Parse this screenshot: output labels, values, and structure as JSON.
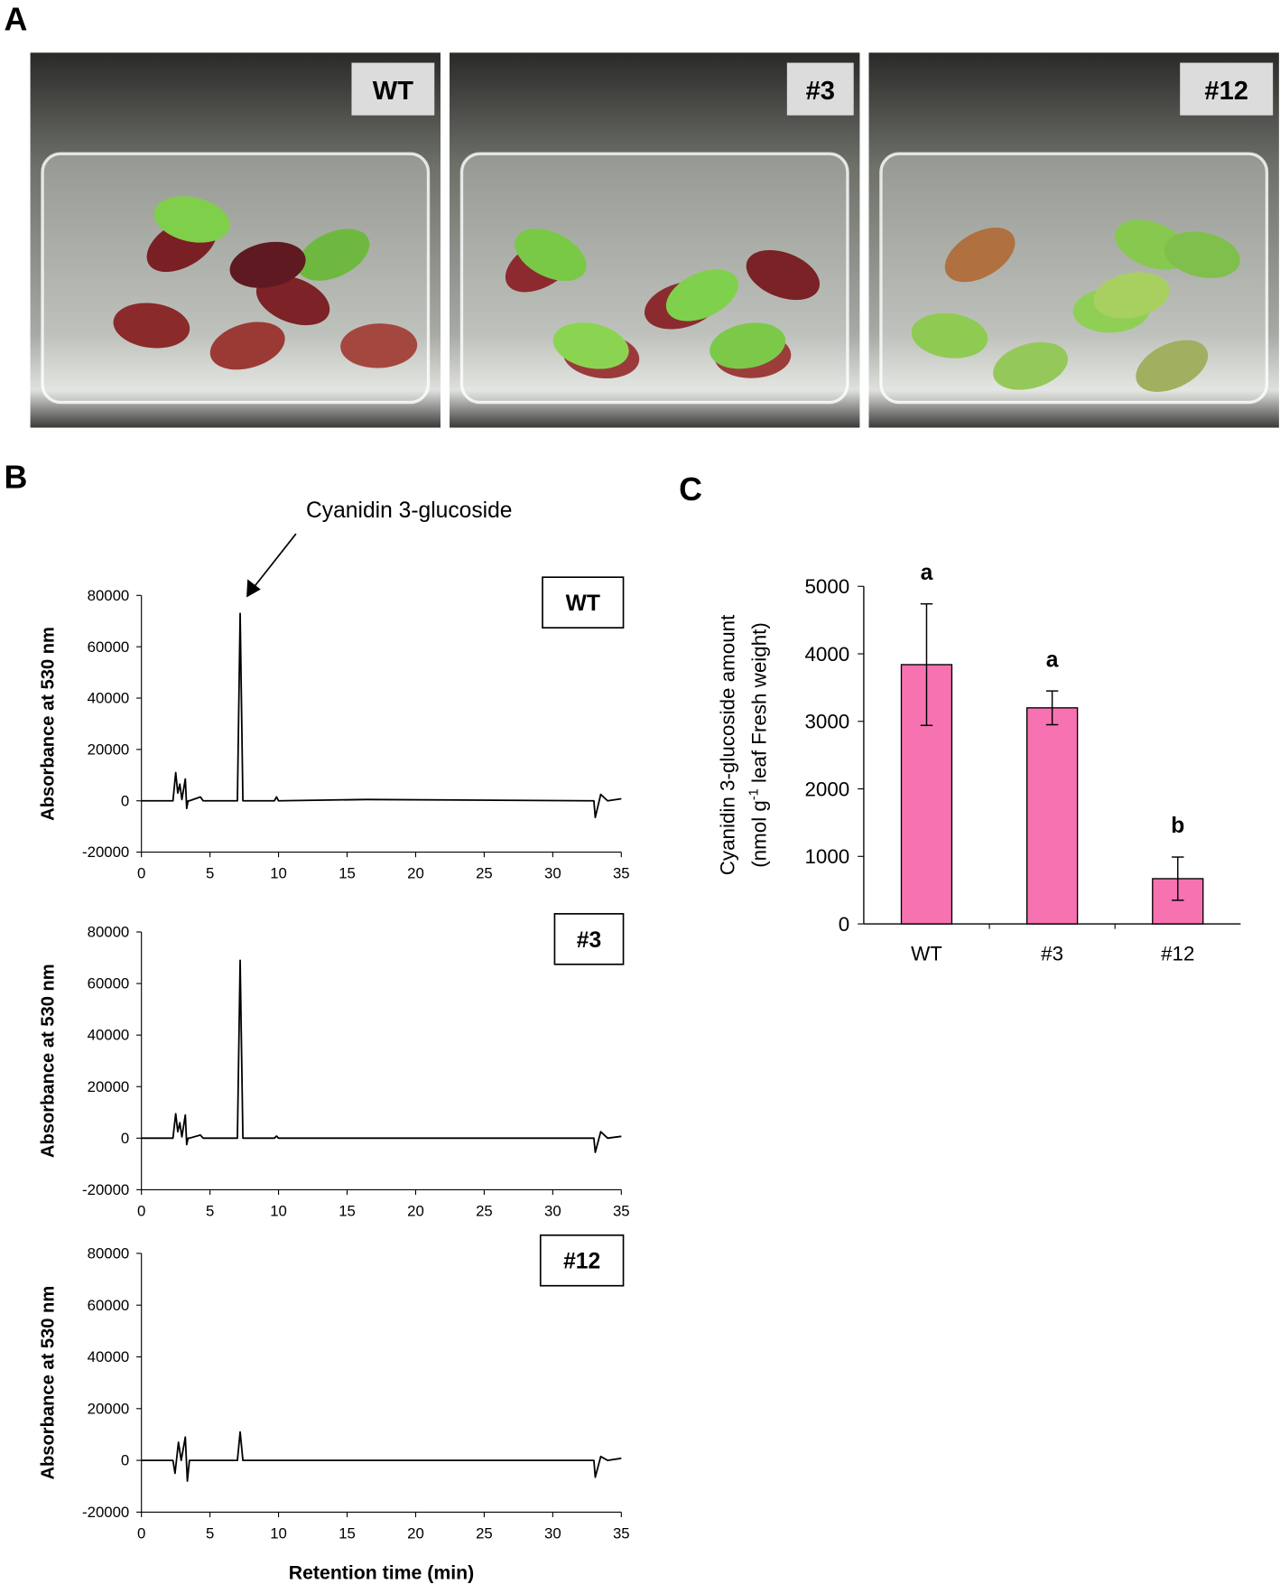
{
  "figure": {
    "panel_labels": [
      "A",
      "B",
      "C"
    ],
    "photos": [
      {
        "label": "WT"
      },
      {
        "label": "#3"
      },
      {
        "label": "#12"
      }
    ]
  },
  "chart_data": [
    {
      "type": "line",
      "label": "WT",
      "annotation": "Cyanidin 3-glucoside",
      "ylabel": "Absorbance at 530 nm",
      "color": "#000000",
      "xlim": [
        0,
        35
      ],
      "xticks": [
        0,
        5,
        10,
        15,
        20,
        25,
        30,
        35
      ],
      "ylim": [
        -20000,
        80000
      ],
      "yticks": [
        -20000,
        0,
        20000,
        40000,
        60000,
        80000
      ],
      "x": [
        0,
        2.3,
        2.5,
        2.65,
        2.8,
        2.95,
        3.2,
        3.3,
        3.4,
        3.5,
        4.3,
        4.5,
        6,
        7.0,
        7.2,
        7.4,
        9.7,
        9.85,
        10,
        16.4,
        33,
        33.1,
        33.5,
        34,
        35
      ],
      "values": [
        0,
        0,
        11000,
        3000,
        6500,
        500,
        8500,
        -3000,
        0,
        0,
        1500,
        0,
        0,
        0,
        73000,
        0,
        0,
        1500,
        0,
        500,
        0,
        -6500,
        2500,
        0,
        800
      ]
    },
    {
      "type": "line",
      "label": "#3",
      "ylabel": "Absorbance at 530 nm",
      "color": "#000000",
      "xlim": [
        0,
        35
      ],
      "xticks": [
        0,
        5,
        10,
        15,
        20,
        25,
        30,
        35
      ],
      "ylim": [
        -20000,
        80000
      ],
      "yticks": [
        -20000,
        0,
        20000,
        40000,
        60000,
        80000
      ],
      "x": [
        0,
        2.3,
        2.5,
        2.65,
        2.8,
        2.95,
        3.2,
        3.3,
        3.4,
        3.5,
        4.3,
        4.5,
        6,
        7.0,
        7.2,
        7.4,
        9.7,
        9.85,
        10,
        33,
        33.1,
        33.5,
        34,
        35
      ],
      "values": [
        0,
        0,
        9500,
        2500,
        6000,
        500,
        9000,
        -2500,
        0,
        0,
        1200,
        0,
        0,
        0,
        69000,
        0,
        0,
        800,
        0,
        0,
        -5500,
        2500,
        0,
        700
      ]
    },
    {
      "type": "line",
      "label": "#12",
      "ylabel": "Absorbance at 530 nm",
      "xlabel": "Retention time (min)",
      "color": "#000000",
      "xlim": [
        0,
        35
      ],
      "xticks": [
        0,
        5,
        10,
        15,
        20,
        25,
        30,
        35
      ],
      "ylim": [
        -20000,
        80000
      ],
      "yticks": [
        -20000,
        0,
        20000,
        40000,
        60000,
        80000
      ],
      "x": [
        0,
        2.3,
        2.45,
        2.7,
        2.9,
        3.2,
        3.35,
        3.5,
        7.0,
        7.2,
        7.4,
        33,
        33.1,
        33.5,
        34,
        35
      ],
      "values": [
        0,
        0,
        -5000,
        7000,
        0,
        9000,
        -8000,
        0,
        0,
        11000,
        0,
        0,
        -6500,
        1500,
        0,
        800
      ]
    },
    {
      "type": "bar",
      "color": "#f772b0",
      "ylabel_lines": [
        "Cyanidin 3-glucoside amount",
        "(nmol g",
        "-1",
        " leaf Fresh weight)"
      ],
      "categories": [
        "WT",
        "#3",
        "#12"
      ],
      "values": [
        3840,
        3200,
        670
      ],
      "errors": [
        900,
        250,
        320
      ],
      "significance": [
        "a",
        "a",
        "b"
      ],
      "ylim": [
        0,
        5000
      ],
      "yticks": [
        0,
        1000,
        2000,
        3000,
        4000,
        5000
      ]
    }
  ]
}
